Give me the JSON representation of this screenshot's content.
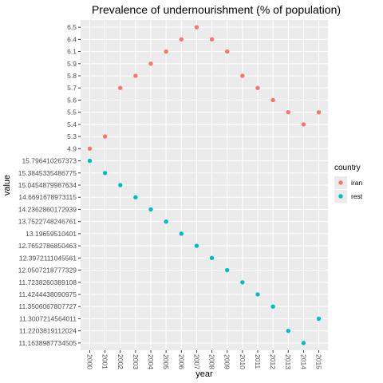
{
  "chart_data": {
    "type": "scatter",
    "title": "Prevalence of undernourishment (% of population)",
    "xlabel": "year",
    "ylabel": "value",
    "x_axis": "discrete",
    "y_axis": "discrete",
    "categories_x": [
      "2000",
      "2001",
      "2002",
      "2003",
      "2004",
      "2005",
      "2006",
      "2007",
      "2008",
      "2009",
      "2010",
      "2011",
      "2012",
      "2013",
      "2014",
      "2015"
    ],
    "categories_y": [
      "11.1638987734505",
      "11.2203819112024",
      "11.3007214564011",
      "11.3506067807727",
      "11.4244438090975",
      "11.7238260389108",
      "12.0507218777329",
      "12.3972111045561",
      "12.7652786850463",
      "13.19659510401",
      "13.7522748246761",
      "14.2362860172939",
      "14.6691678973115",
      "15.0454879987634",
      "15.3845335486775",
      "15.796410267373",
      "4.9",
      "5.3",
      "5.4",
      "5.5",
      "5.6",
      "5.7",
      "5.8",
      "5.9",
      "6.1",
      "6.4",
      "6.5"
    ],
    "legend_title": "country",
    "legend_position": "right",
    "series": [
      {
        "name": "iran",
        "color": "#F8766D",
        "x": [
          "2000",
          "2001",
          "2002",
          "2003",
          "2004",
          "2005",
          "2006",
          "2007",
          "2008",
          "2009",
          "2010",
          "2011",
          "2012",
          "2013",
          "2014",
          "2015"
        ],
        "y": [
          "4.9",
          "5.3",
          "5.7",
          "5.8",
          "5.9",
          "6.1",
          "6.4",
          "6.5",
          "6.4",
          "6.1",
          "5.8",
          "5.7",
          "5.6",
          "5.5",
          "5.4",
          "5.5"
        ]
      },
      {
        "name": "rest",
        "color": "#00BFC4",
        "x": [
          "2000",
          "2001",
          "2002",
          "2003",
          "2004",
          "2005",
          "2006",
          "2007",
          "2008",
          "2009",
          "2010",
          "2011",
          "2012",
          "2013",
          "2014",
          "2015"
        ],
        "y": [
          "15.796410267373",
          "15.3845335486775",
          "15.0454879987634",
          "14.6691678973115",
          "14.2362860172939",
          "13.7522748246761",
          "13.19659510401",
          "12.7652786850463",
          "12.3972111045561",
          "12.0507218777329",
          "11.7238260389108",
          "11.4244438090975",
          "11.3506067807727",
          "11.2203819112024",
          "11.1638987734505",
          "11.3007214564011"
        ]
      }
    ],
    "grid": true,
    "panel_background": "#EBEBEB"
  }
}
